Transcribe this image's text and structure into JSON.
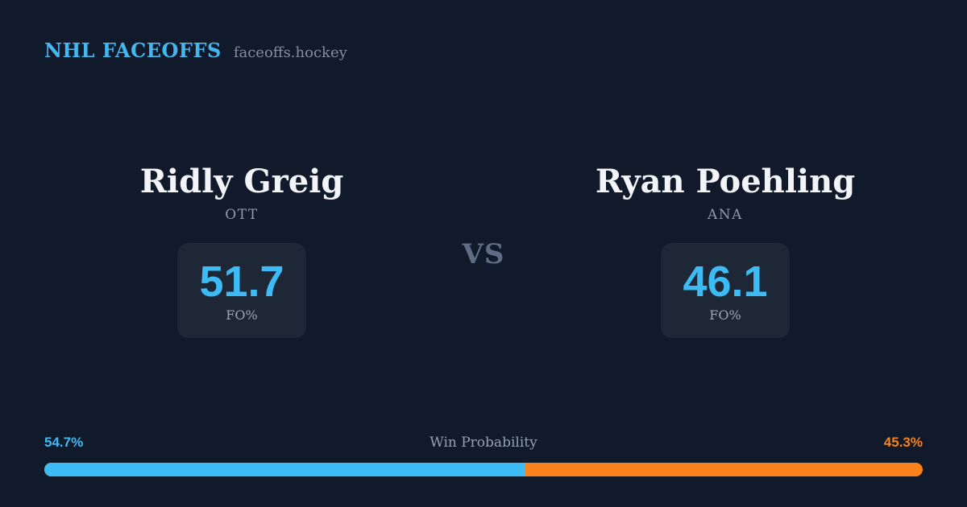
{
  "header": {
    "brand": "NHL FACEOFFS",
    "domain": "faceoffs.hockey"
  },
  "vs_label": "VS",
  "players": [
    {
      "name": "Ridly Greig",
      "team": "OTT",
      "stat_value": "51.7",
      "stat_label": "FO%",
      "win_probability_label": "54.7%",
      "win_probability_value": 54.7,
      "accent_color": "#3cbbf5"
    },
    {
      "name": "Ryan Poehling",
      "team": "ANA",
      "stat_value": "46.1",
      "stat_label": "FO%",
      "win_probability_label": "45.3%",
      "win_probability_value": 45.3,
      "accent_color": "#f9821d"
    }
  ],
  "win_probability": {
    "title": "Win Probability"
  },
  "colors": {
    "background": "#111a2b",
    "card_background": "#1d2736",
    "accent_blue": "#3cbbf5",
    "accent_orange": "#f9821d",
    "text_primary": "#f2f4f8",
    "text_muted": "#8d99ac"
  }
}
